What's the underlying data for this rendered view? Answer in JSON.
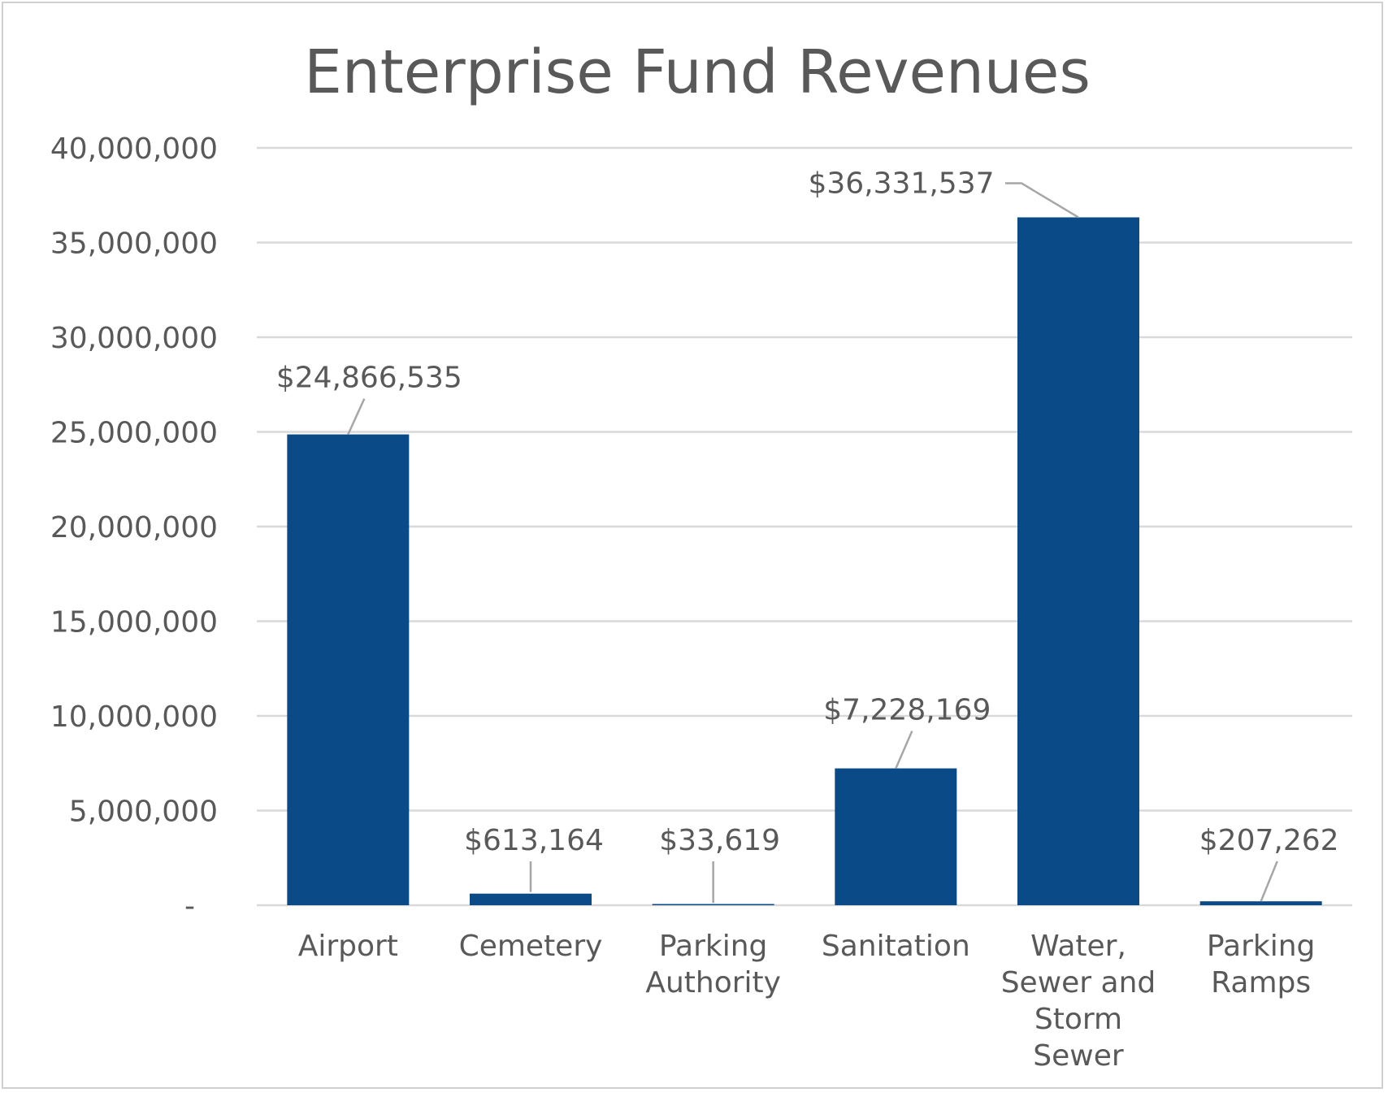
{
  "chart_data": {
    "type": "bar",
    "title": "Enterprise Fund Revenues",
    "categories": [
      [
        "Airport"
      ],
      [
        "Cemetery"
      ],
      [
        "Parking",
        "Authority"
      ],
      [
        "Sanitation"
      ],
      [
        "Water,",
        "Sewer and",
        "Storm",
        "Sewer"
      ],
      [
        "Parking",
        "Ramps"
      ]
    ],
    "values": [
      24866535,
      613164,
      33619,
      7228169,
      36331537,
      207262
    ],
    "data_labels": [
      "$24,866,535",
      "$613,164",
      "$33,619",
      "$7,228,169",
      "$36,331,537",
      "$207,262"
    ],
    "y_tick_labels": [
      "-",
      "5,000,000",
      "10,000,000",
      "15,000,000",
      "20,000,000",
      "25,000,000",
      "30,000,000",
      "35,000,000",
      "40,000,000"
    ],
    "y_ticks": [
      0,
      5000000,
      10000000,
      15000000,
      20000000,
      25000000,
      30000000,
      35000000,
      40000000
    ],
    "ylim": [
      0,
      40000000
    ],
    "xlabel": "",
    "ylabel": "",
    "grid": true,
    "legend": "none",
    "colors": {
      "bar": "#0a4a86",
      "grid": "#d9d9d9",
      "text": "#595959",
      "leader": "#a6a6a6"
    }
  }
}
